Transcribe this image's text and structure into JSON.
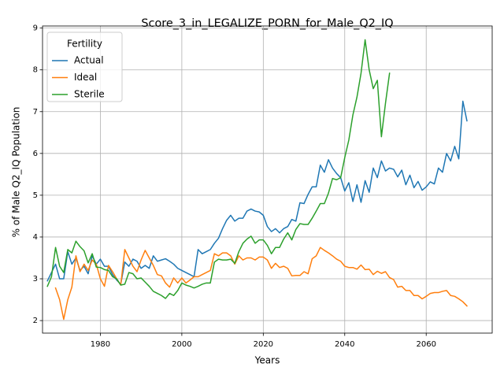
{
  "chart_data": {
    "type": "line",
    "title": "Score_3_in_LEGALIZE_PORN_for_Male_Q2_IQ",
    "xlabel": "Years",
    "ylabel": "% of Male Q2_IQ Population",
    "xlim": [
      1965.8,
      2076.2
    ],
    "ylim": [
      1.7,
      9.05
    ],
    "xticks": [
      1980,
      2000,
      2020,
      2040,
      2060
    ],
    "yticks": [
      2,
      3,
      4,
      5,
      6,
      7,
      8,
      9
    ],
    "grid": true,
    "legend": {
      "title": "Fertility",
      "placement": "upper-left"
    },
    "series": [
      {
        "name": "Actual",
        "color": "#1f77b4",
        "x": [
          1967,
          1968,
          1969,
          1970,
          1971,
          1972,
          1973,
          1974,
          1975,
          1976,
          1977,
          1978,
          1979,
          1980,
          1981,
          1982,
          1983,
          1984,
          1985,
          1986,
          1987,
          1988,
          1989,
          1990,
          1991,
          1992,
          1993,
          1994,
          1995,
          1996,
          1997,
          1998,
          1999,
          2000,
          2001,
          2002,
          2003,
          2004,
          2005,
          2006,
          2007,
          2008,
          2009,
          2010,
          2011,
          2012,
          2013,
          2014,
          2015,
          2016,
          2017,
          2018,
          2019,
          2020,
          2021,
          2022,
          2023,
          2024,
          2025,
          2026,
          2027,
          2028,
          2029,
          2030,
          2031,
          2032,
          2033,
          2034,
          2035,
          2036,
          2037,
          2038,
          2039,
          2040,
          2041,
          2042,
          2043,
          2044,
          2045,
          2046,
          2047,
          2048,
          2049,
          2050,
          2051,
          2052,
          2053,
          2054,
          2055,
          2056,
          2057,
          2058,
          2059,
          2060,
          2061,
          2062,
          2063,
          2064,
          2065,
          2066,
          2067,
          2068,
          2069,
          2070
        ],
        "values": [
          2.95,
          3.15,
          3.35,
          3.0,
          3.0,
          3.65,
          3.35,
          3.5,
          3.2,
          3.3,
          3.12,
          3.55,
          3.35,
          3.47,
          3.3,
          3.3,
          3.1,
          2.97,
          2.87,
          3.4,
          3.3,
          3.47,
          3.42,
          3.25,
          3.32,
          3.25,
          3.55,
          3.42,
          3.45,
          3.48,
          3.42,
          3.35,
          3.25,
          3.2,
          3.15,
          3.1,
          3.05,
          3.7,
          3.6,
          3.65,
          3.7,
          3.85,
          3.97,
          4.2,
          4.4,
          4.52,
          4.38,
          4.45,
          4.45,
          4.62,
          4.67,
          4.62,
          4.6,
          4.52,
          4.25,
          4.13,
          4.2,
          4.1,
          4.2,
          4.25,
          4.42,
          4.38,
          4.82,
          4.8,
          5.02,
          5.2,
          5.2,
          5.72,
          5.55,
          5.85,
          5.65,
          5.52,
          5.42,
          5.1,
          5.3,
          4.85,
          5.25,
          4.83,
          5.35,
          5.07,
          5.65,
          5.42,
          5.82,
          5.58,
          5.65,
          5.62,
          5.44,
          5.6,
          5.25,
          5.48,
          5.18,
          5.33,
          5.12,
          5.2,
          5.32,
          5.27,
          5.65,
          5.55,
          6.0,
          5.82,
          6.17,
          5.87,
          7.25,
          6.78
        ]
      },
      {
        "name": "Ideal",
        "color": "#ff7f0e",
        "x": [
          1969,
          1970,
          1971,
          1972,
          1973,
          1974,
          1975,
          1976,
          1977,
          1978,
          1979,
          1980,
          1981,
          1982,
          1983,
          1984,
          1985,
          1986,
          1987,
          1988,
          1989,
          1990,
          1991,
          1992,
          1993,
          1994,
          1995,
          1996,
          1997,
          1998,
          1999,
          2000,
          2001,
          2002,
          2003,
          2004,
          2005,
          2006,
          2007,
          2008,
          2009,
          2010,
          2011,
          2012,
          2013,
          2014,
          2015,
          2016,
          2017,
          2018,
          2019,
          2020,
          2021,
          2022,
          2023,
          2024,
          2025,
          2026,
          2027,
          2028,
          2029,
          2030,
          2031,
          2032,
          2033,
          2034,
          2035,
          2036,
          2037,
          2038,
          2039,
          2040,
          2041,
          2042,
          2043,
          2044,
          2045,
          2046,
          2047,
          2048,
          2049,
          2050,
          2051,
          2052,
          2053,
          2054,
          2055,
          2056,
          2057,
          2058,
          2059,
          2060,
          2061,
          2062,
          2063,
          2064,
          2065,
          2066,
          2067,
          2068,
          2069,
          2070
        ],
        "values": [
          2.78,
          2.5,
          2.03,
          2.5,
          2.8,
          3.55,
          3.17,
          3.35,
          3.2,
          3.45,
          3.35,
          3.0,
          2.82,
          3.32,
          3.17,
          3.0,
          2.85,
          3.7,
          3.5,
          3.3,
          3.17,
          3.45,
          3.68,
          3.5,
          3.32,
          3.1,
          3.07,
          2.9,
          2.8,
          3.02,
          2.9,
          3.02,
          2.9,
          2.97,
          3.05,
          3.05,
          3.1,
          3.15,
          3.2,
          3.6,
          3.55,
          3.62,
          3.62,
          3.55,
          3.35,
          3.55,
          3.45,
          3.5,
          3.5,
          3.45,
          3.52,
          3.52,
          3.45,
          3.25,
          3.37,
          3.27,
          3.3,
          3.25,
          3.07,
          3.08,
          3.08,
          3.17,
          3.12,
          3.48,
          3.55,
          3.75,
          3.68,
          3.62,
          3.55,
          3.47,
          3.42,
          3.3,
          3.27,
          3.27,
          3.23,
          3.33,
          3.22,
          3.23,
          3.1,
          3.18,
          3.13,
          3.17,
          3.03,
          2.98,
          2.8,
          2.82,
          2.72,
          2.72,
          2.6,
          2.6,
          2.52,
          2.58,
          2.65,
          2.67,
          2.67,
          2.7,
          2.72,
          2.6,
          2.58,
          2.52,
          2.45,
          2.35
        ]
      },
      {
        "name": "Sterile",
        "color": "#2ca02c",
        "x": [
          1967,
          1968,
          1969,
          1970,
          1971,
          1972,
          1973,
          1974,
          1975,
          1976,
          1977,
          1978,
          1979,
          1980,
          1981,
          1982,
          1983,
          1984,
          1985,
          1986,
          1987,
          1988,
          1989,
          1990,
          1991,
          1992,
          1993,
          1994,
          1995,
          1996,
          1997,
          1998,
          1999,
          2000,
          2001,
          2002,
          2003,
          2004,
          2005,
          2006,
          2007,
          2008,
          2009,
          2010,
          2011,
          2012,
          2013,
          2014,
          2015,
          2016,
          2017,
          2018,
          2019,
          2020,
          2021,
          2022,
          2023,
          2024,
          2025,
          2026,
          2027,
          2028,
          2029,
          2030,
          2031,
          2032,
          2033,
          2034,
          2035,
          2036,
          2037,
          2038,
          2039,
          2040,
          2041,
          2042,
          2043,
          2044,
          2045,
          2046,
          2047,
          2048,
          2049,
          2050,
          2051
        ],
        "values": [
          2.82,
          3.05,
          3.75,
          3.3,
          3.15,
          3.7,
          3.62,
          3.9,
          3.77,
          3.67,
          3.38,
          3.6,
          3.28,
          3.27,
          3.22,
          3.2,
          3.05,
          3.0,
          2.85,
          2.87,
          3.15,
          3.12,
          3.0,
          3.02,
          2.92,
          2.82,
          2.7,
          2.65,
          2.6,
          2.53,
          2.65,
          2.6,
          2.72,
          2.9,
          2.85,
          2.82,
          2.78,
          2.82,
          2.87,
          2.9,
          2.9,
          3.4,
          3.47,
          3.45,
          3.45,
          3.47,
          3.37,
          3.65,
          3.85,
          3.95,
          4.02,
          3.85,
          3.93,
          3.93,
          3.8,
          3.6,
          3.75,
          3.75,
          3.95,
          4.1,
          3.93,
          4.18,
          4.32,
          4.3,
          4.3,
          4.45,
          4.62,
          4.8,
          4.8,
          5.05,
          5.4,
          5.37,
          5.42,
          5.9,
          6.32,
          6.92,
          7.35,
          7.92,
          8.72,
          8.0,
          7.55,
          7.75,
          6.4,
          7.2,
          7.92
        ]
      }
    ]
  }
}
